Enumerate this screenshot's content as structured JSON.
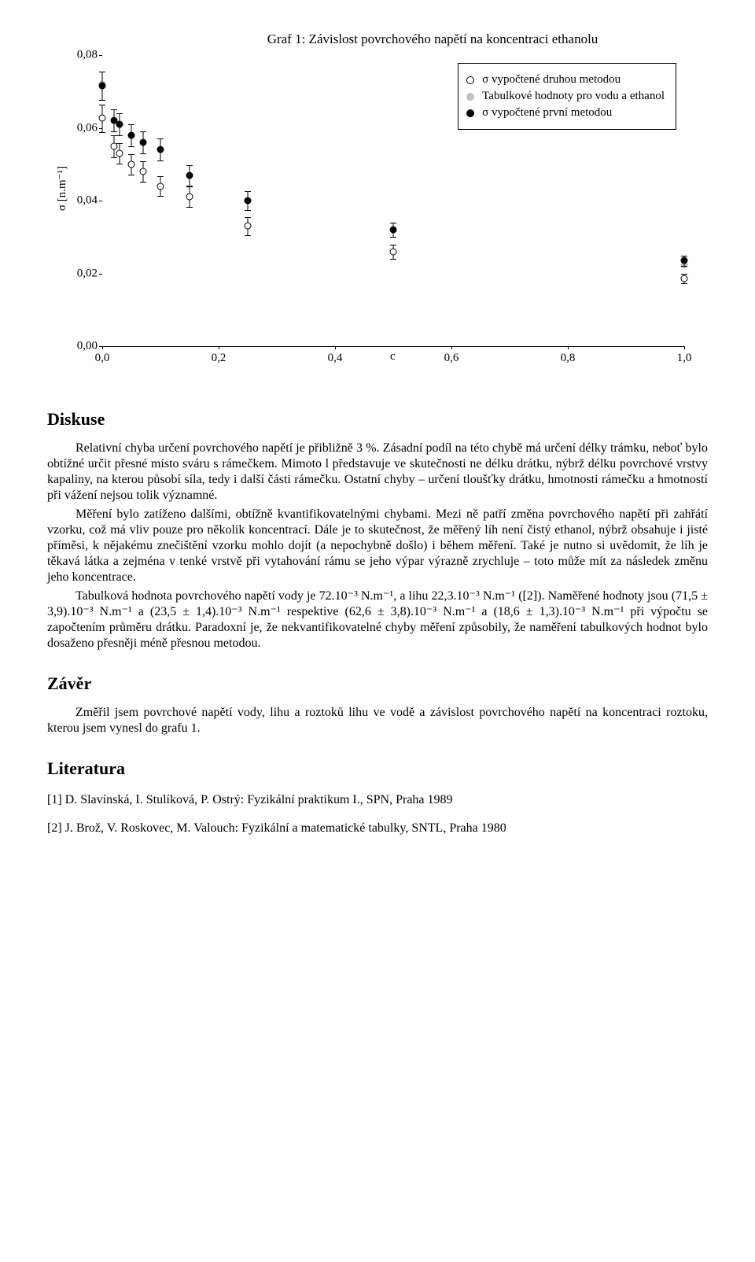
{
  "chart": {
    "type": "scatter",
    "title": "Graf 1: Závislost povrchového napětí na koncentraci ethanolu",
    "title_fontsize": 17,
    "ylabel": "σ [n.m⁻¹]",
    "xlabel": "c",
    "xlim": [
      0.0,
      1.0
    ],
    "ylim": [
      0.0,
      0.08
    ],
    "xticks": [
      0.0,
      0.2,
      0.4,
      0.6,
      0.8,
      1.0
    ],
    "xtick_labels": [
      "0,0",
      "0,2",
      "0,4",
      "0,6",
      "0,8",
      "1,0"
    ],
    "yticks": [
      0.0,
      0.02,
      0.04,
      0.06,
      0.08
    ],
    "ytick_labels": [
      "0,00",
      "0,02",
      "0,04",
      "0,06",
      "0,08"
    ],
    "background_color": "#ffffff",
    "axis_color": "#000000",
    "tick_fontsize": 15,
    "marker_size": 9,
    "errorbar_color": "#000000",
    "cap_width": 8,
    "legend": {
      "position": "upper-right",
      "border_color": "#000000",
      "items": [
        {
          "label": "σ vypočtené druhou metodou",
          "style": "open"
        },
        {
          "label": "Tabulkové hodnoty pro vodu a ethanol",
          "style": "grey"
        },
        {
          "label": "σ vypočtené první metodou",
          "style": "filled"
        }
      ]
    },
    "series": [
      {
        "name": "tabulkove",
        "style": "grey",
        "has_error": false,
        "points": [
          {
            "x": 0.0,
            "y": 0.072
          },
          {
            "x": 1.0,
            "y": 0.0223
          }
        ]
      },
      {
        "name": "druha_metoda",
        "style": "open",
        "has_error": true,
        "points": [
          {
            "x": 0.0,
            "y": 0.0626,
            "err": 0.0038
          },
          {
            "x": 0.02,
            "y": 0.055,
            "err": 0.003
          },
          {
            "x": 0.03,
            "y": 0.053,
            "err": 0.0028
          },
          {
            "x": 0.05,
            "y": 0.05,
            "err": 0.0028
          },
          {
            "x": 0.07,
            "y": 0.048,
            "err": 0.0028
          },
          {
            "x": 0.1,
            "y": 0.044,
            "err": 0.0028
          },
          {
            "x": 0.15,
            "y": 0.041,
            "err": 0.0028
          },
          {
            "x": 0.25,
            "y": 0.033,
            "err": 0.0025
          },
          {
            "x": 0.5,
            "y": 0.026,
            "err": 0.002
          },
          {
            "x": 1.0,
            "y": 0.0186,
            "err": 0.0013
          }
        ]
      },
      {
        "name": "prvni_metoda",
        "style": "filled",
        "has_error": true,
        "points": [
          {
            "x": 0.0,
            "y": 0.0715,
            "err": 0.0039
          },
          {
            "x": 0.02,
            "y": 0.062,
            "err": 0.003
          },
          {
            "x": 0.03,
            "y": 0.061,
            "err": 0.003
          },
          {
            "x": 0.05,
            "y": 0.058,
            "err": 0.003
          },
          {
            "x": 0.07,
            "y": 0.056,
            "err": 0.003
          },
          {
            "x": 0.1,
            "y": 0.054,
            "err": 0.003
          },
          {
            "x": 0.15,
            "y": 0.047,
            "err": 0.0028
          },
          {
            "x": 0.25,
            "y": 0.04,
            "err": 0.0025
          },
          {
            "x": 0.5,
            "y": 0.032,
            "err": 0.002
          },
          {
            "x": 1.0,
            "y": 0.0235,
            "err": 0.0014
          }
        ]
      }
    ]
  },
  "sections": {
    "diskuse": {
      "heading": "Diskuse",
      "p1": "Relativní chyba určení povrchového napětí je přibližně 3 %. Zásadní podíl na této chybě má určení délky trámku, neboť bylo obtížné určit přesné místo sváru s rámečkem. Mimoto l představuje ve skutečnosti ne délku drátku, nýbrž délku povrchové vrstvy kapaliny, na kterou působí síla, tedy i další části rámečku. Ostatní chyby – určení tloušťky drátku, hmotnosti rámečku a hmotností při vážení nejsou tolik významné.",
      "p2": "Měření bylo zatíženo dalšími, obtížně kvantifikovatelnými chybami. Mezi ně patří změna povrchového napětí při zahřátí vzorku, což má vliv pouze pro několik koncentrací. Dále je to skutečnost, že měřený líh není čistý ethanol, nýbrž obsahuje i jisté příměsi, k nějakému znečištění vzorku mohlo dojít (a nepochybně došlo) i během měření. Také je nutno si uvědomit, že líh je těkavá látka a zejména v tenké vrstvě při vytahování rámu se jeho výpar výrazně zrychluje – toto může mít za následek změnu jeho koncentrace.",
      "p3": "Tabulková hodnota povrchového napětí vody je 72.10⁻³ N.m⁻¹, a lihu 22,3.10⁻³ N.m⁻¹ ([2]). Naměřené hodnoty jsou (71,5 ± 3,9).10⁻³ N.m⁻¹ a (23,5 ± 1,4).10⁻³ N.m⁻¹ respektive (62,6 ± 3,8).10⁻³ N.m⁻¹ a (18,6 ± 1,3).10⁻³ N.m⁻¹ při výpočtu se započtením průměru drátku. Paradoxní je, že nekvantifikovatelné chyby měření způsobily, že naměření tabulkových hodnot bylo dosaženo přesněji méně přesnou metodou."
    },
    "zaver": {
      "heading": "Závěr",
      "p1": "Změřil jsem povrchové napětí vody, lihu a roztoků lihu ve vodě a závislost povrchového napětí na koncentraci roztoku, kterou jsem vynesl do grafu 1."
    },
    "literatura": {
      "heading": "Literatura",
      "ref1": "[1] D. Slavínská, I. Stulíková, P. Ostrý: Fyzikální praktikum I., SPN, Praha 1989",
      "ref2": "[2] J. Brož, V. Roskovec, M. Valouch: Fyzikální a matematické tabulky, SNTL, Praha 1980"
    }
  }
}
